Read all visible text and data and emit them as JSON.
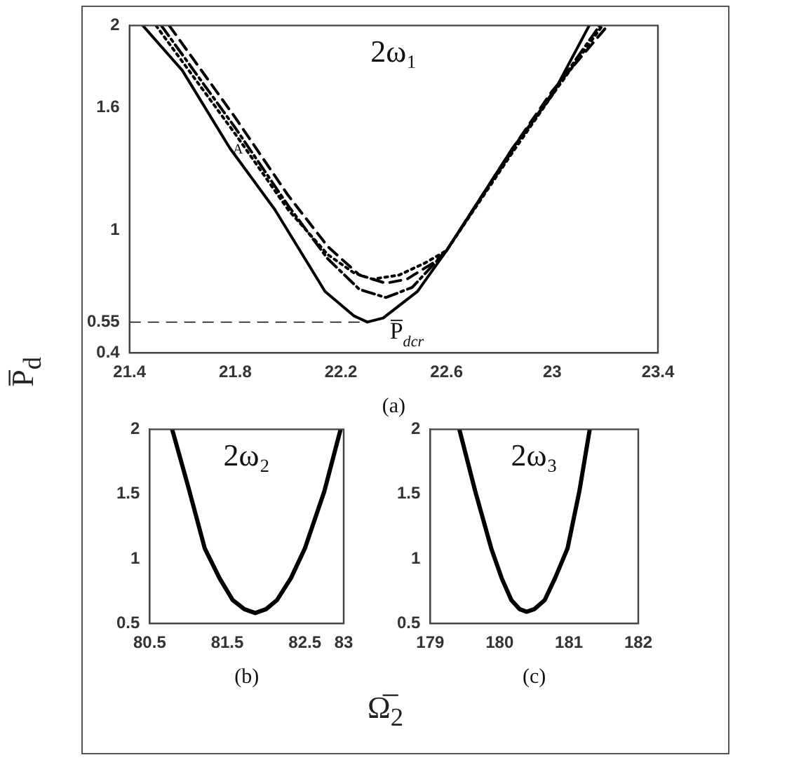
{
  "chart_data": [
    {
      "type": "line",
      "title": "2ω₁",
      "ylabel": "P̅$_{d}$",
      "xlabel": "Ω̅$_{2}$",
      "xlim": [
        21.4,
        23.4
      ],
      "xticks": [
        21.4,
        21.8,
        22.2,
        22.6,
        23,
        23.4
      ],
      "ylim": [
        0.4,
        2
      ],
      "yticks": [
        0.4,
        0.55,
        1,
        1.6,
        2
      ],
      "series": [
        {
          "color": "#000000",
          "line_style": "solid",
          "x": [
            21.45,
            21.6,
            21.78,
            21.95,
            22.14,
            22.25,
            22.3,
            22.36,
            22.49,
            22.6,
            22.85,
            23.0,
            23.14
          ],
          "values": [
            2,
            1.78,
            1.4,
            1.1,
            0.7,
            0.58,
            0.55,
            0.57,
            0.7,
            0.9,
            1.4,
            1.66,
            2
          ]
        },
        {
          "color": "#000000",
          "line_style": "dotted",
          "x": [
            21.5,
            21.8,
            22.0,
            22.15,
            22.25,
            22.32,
            22.42,
            22.52,
            22.6,
            22.85,
            23.0,
            23.19
          ],
          "values": [
            2,
            1.47,
            1.1,
            0.88,
            0.79,
            0.76,
            0.78,
            0.84,
            0.9,
            1.38,
            1.66,
            2
          ]
        },
        {
          "color": "#000000",
          "line_style": "dashdot",
          "x": [
            21.52,
            21.8,
            22.0,
            22.15,
            22.27,
            22.37,
            22.47,
            22.6,
            22.85,
            23.0,
            23.18
          ],
          "values": [
            2,
            1.5,
            1.12,
            0.86,
            0.71,
            0.67,
            0.72,
            0.9,
            1.39,
            1.67,
            2
          ]
        },
        {
          "color": "#000000",
          "line_style": "dashed",
          "x": [
            21.55,
            21.8,
            22.0,
            22.15,
            22.27,
            22.37,
            22.45,
            22.55,
            22.6,
            22.85,
            23.0,
            23.21
          ],
          "values": [
            2,
            1.55,
            1.17,
            0.92,
            0.78,
            0.74,
            0.76,
            0.84,
            0.9,
            1.4,
            1.68,
            2
          ]
        }
      ],
      "ref_lines": [
        {
          "axis": "y",
          "value": 0.55,
          "line_style": "dashed",
          "color": "#000000"
        }
      ],
      "annotations": [
        "(a)",
        {
          "text": "P̅$_{dcr}$",
          "x": 22.3,
          "y": 0.55
        },
        {
          "text": "A",
          "x": 21.77,
          "y": 1.4
        }
      ]
    },
    {
      "type": "line",
      "title": "2ω₂",
      "xlim": [
        80.5,
        83
      ],
      "xticks": [
        80.5,
        81.5,
        82.5,
        83
      ],
      "ylim": [
        0.5,
        2
      ],
      "yticks": [
        0.5,
        1,
        1.5,
        2
      ],
      "series": [
        {
          "color": "#000000",
          "line_style": "solid",
          "x": [
            80.79,
            81.0,
            81.21,
            81.4,
            81.57,
            81.72,
            81.86,
            82.0,
            82.14,
            82.32,
            82.5,
            82.75,
            82.96
          ],
          "values": [
            2,
            1.55,
            1.08,
            0.85,
            0.68,
            0.61,
            0.58,
            0.61,
            0.68,
            0.85,
            1.08,
            1.52,
            2
          ]
        }
      ],
      "annotations": [
        "(b)"
      ]
    },
    {
      "type": "line",
      "title": "2ω₃",
      "xlim": [
        179,
        182
      ],
      "xticks": [
        179,
        180,
        181,
        182
      ],
      "ylim": [
        0.5,
        2
      ],
      "yticks": [
        0.5,
        1,
        1.5,
        2
      ],
      "series": [
        {
          "color": "#000000",
          "line_style": "solid",
          "x": [
            179.42,
            179.65,
            179.88,
            180.03,
            180.17,
            180.29,
            180.39,
            180.5,
            180.65,
            180.8,
            180.98,
            181.15,
            181.3
          ],
          "values": [
            2,
            1.52,
            1.08,
            0.85,
            0.68,
            0.61,
            0.59,
            0.61,
            0.68,
            0.85,
            1.08,
            1.52,
            2
          ]
        }
      ],
      "annotations": [
        "(c)"
      ]
    }
  ]
}
